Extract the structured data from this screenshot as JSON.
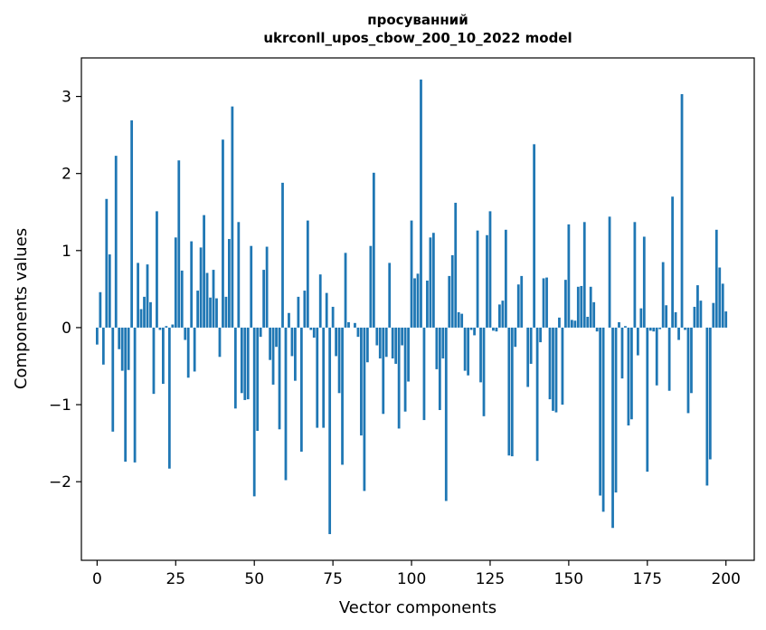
{
  "chart_data": {
    "type": "bar",
    "title_line1": "просуванний",
    "title_line2": "ukrconll_upos_cbow_200_10_2022 model",
    "xlabel": "Vector components",
    "ylabel": "Components values",
    "xlim": [
      -5,
      209
    ],
    "ylim": [
      -3.02,
      3.5
    ],
    "xticks": [
      0,
      25,
      50,
      75,
      100,
      125,
      150,
      175,
      200
    ],
    "xtick_labels": [
      "0",
      "25",
      "50",
      "75",
      "100",
      "125",
      "150",
      "175",
      "200"
    ],
    "yticks": [
      -2,
      -1,
      0,
      1,
      2,
      3
    ],
    "ytick_labels": [
      "−2",
      "−1",
      "0",
      "1",
      "2",
      "3"
    ],
    "bar_color": "#1f77b4",
    "grid": false,
    "values": [
      -0.22,
      0.46,
      -0.48,
      1.67,
      0.95,
      -1.35,
      2.23,
      -0.28,
      -0.56,
      -1.74,
      -0.55,
      2.69,
      -1.75,
      0.84,
      0.24,
      0.4,
      0.82,
      0.33,
      -0.86,
      1.51,
      -0.03,
      -0.73,
      0.02,
      -1.83,
      0.04,
      1.17,
      2.17,
      0.74,
      -0.16,
      -0.65,
      1.12,
      -0.57,
      0.48,
      1.04,
      1.46,
      0.71,
      0.39,
      0.75,
      0.38,
      -0.38,
      2.44,
      0.4,
      1.15,
      2.87,
      -1.05,
      1.37,
      -0.85,
      -0.94,
      -0.93,
      1.06,
      -2.19,
      -1.34,
      -0.12,
      0.75,
      1.05,
      -0.42,
      -0.74,
      -0.25,
      -1.32,
      1.88,
      -1.98,
      0.19,
      -0.37,
      -0.69,
      0.4,
      -1.61,
      0.48,
      1.39,
      -0.03,
      -0.13,
      -1.3,
      0.69,
      -1.3,
      0.45,
      -2.68,
      0.27,
      -0.37,
      -0.85,
      -1.78,
      0.97,
      0.07,
      0.0,
      0.06,
      -0.12,
      -1.4,
      -2.12,
      -0.45,
      1.06,
      2.01,
      -0.23,
      -0.4,
      -1.12,
      -0.38,
      0.84,
      -0.4,
      -0.47,
      -1.31,
      -0.23,
      -1.09,
      -0.7,
      1.39,
      0.64,
      0.7,
      3.22,
      -1.2,
      0.61,
      1.17,
      1.23,
      -0.54,
      -1.07,
      -0.4,
      -2.25,
      0.67,
      0.94,
      1.62,
      0.2,
      0.18,
      -0.56,
      -0.62,
      -0.03,
      -0.1,
      1.26,
      -0.71,
      -1.15,
      1.2,
      1.51,
      -0.04,
      -0.05,
      0.3,
      0.35,
      1.27,
      -1.66,
      -1.67,
      -0.25,
      0.56,
      0.67,
      0.0,
      -0.77,
      -0.47,
      2.38,
      -1.73,
      -0.19,
      0.64,
      0.65,
      -0.93,
      -1.08,
      -1.1,
      0.13,
      -1.0,
      0.62,
      1.34,
      0.1,
      0.09,
      0.53,
      0.54,
      1.37,
      0.14,
      0.53,
      0.33,
      -0.05,
      -2.18,
      -2.39,
      0.0,
      1.44,
      -2.6,
      -2.14,
      0.07,
      -0.66,
      0.02,
      -1.27,
      -1.19,
      1.37,
      -0.36,
      0.25,
      1.18,
      -1.87,
      -0.04,
      -0.05,
      -0.75,
      -0.02,
      0.85,
      0.29,
      -0.82,
      1.7,
      0.2,
      -0.16,
      3.03,
      -0.03,
      -1.11,
      -0.85,
      0.27,
      0.55,
      0.35,
      0.0,
      -2.05,
      -1.71,
      0.32,
      1.27,
      0.78,
      0.57,
      0.21
    ]
  }
}
